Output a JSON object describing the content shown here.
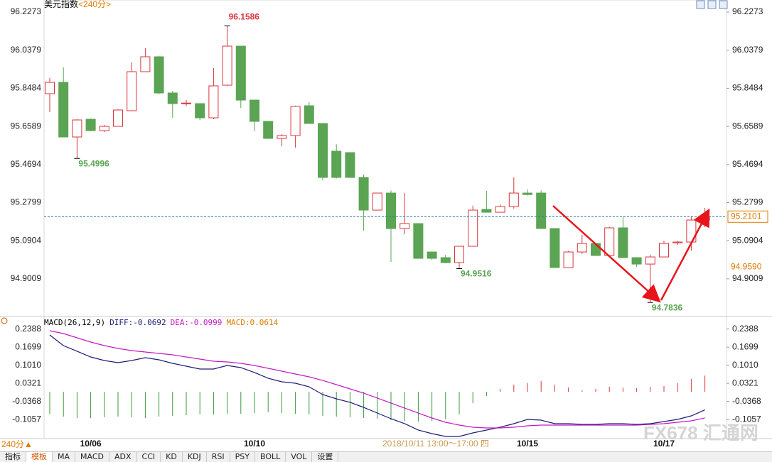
{
  "header": {
    "title": "美元指数",
    "period": "<240分>",
    "period_switch": "240分▲",
    "watermark": "FX678 汇通网"
  },
  "tabs": [
    "指标",
    "模板",
    "MA",
    "MACD",
    "ADX",
    "CCI",
    "KD",
    "KDJ",
    "RSI",
    "PSY",
    "BOLL",
    "VOL",
    "设置"
  ],
  "chart_data": [
    {
      "type": "candlestick",
      "categories": [
        null,
        null,
        null,
        "10/06",
        null,
        null,
        null,
        null,
        null,
        null,
        null,
        null,
        null,
        null,
        null,
        "10/10",
        null,
        null,
        null,
        null,
        null,
        null,
        null,
        null,
        null,
        null,
        null,
        null,
        null,
        null,
        null,
        null,
        null,
        null,
        null,
        "10/15",
        null,
        null,
        null,
        null,
        null,
        null,
        null,
        null,
        null,
        "10/17",
        null,
        null,
        null
      ],
      "open": [
        95.8215,
        95.8779,
        95.6062,
        95.6944,
        95.6379,
        95.6591,
        95.7368,
        95.9309,
        96.005,
        95.825,
        95.7721,
        95.7721,
        95.7015,
        95.8638,
        96.0579,
        95.7897,
        95.6838,
        95.5991,
        95.6133,
        95.7615,
        95.6733,
        95.5356,
        95.5286,
        95.4051,
        95.2427,
        95.3274,
        95.151,
        95.1757,
        95.0345,
        95.0063,
        94.9815,
        95.0628,
        95.2462,
        95.2321,
        95.2604,
        95.3274,
        95.3274,
        95.151,
        94.9569,
        95.0345,
        95.0769,
        95.0169,
        95.1545,
        95.0063,
        94.9744,
        95.0098,
        95.08,
        95.084,
        95.1933
      ],
      "high": [
        95.8991,
        95.952,
        95.6944,
        95.6979,
        95.6662,
        95.745,
        95.9767,
        96.0473,
        96.01,
        95.836,
        95.79,
        95.7721,
        95.9485,
        96.1586,
        96.0579,
        95.7897,
        95.6838,
        95.62,
        95.762,
        95.78,
        95.6733,
        95.57,
        95.5286,
        95.42,
        95.3274,
        95.34,
        95.3274,
        95.1757,
        95.0345,
        95.02,
        95.0628,
        95.265,
        95.338,
        95.27,
        95.4051,
        95.345,
        95.34,
        95.151,
        95.04,
        95.12,
        95.0769,
        95.16,
        95.211,
        95.0063,
        95.02,
        95.09,
        95.09,
        95.21,
        95.2533
      ],
      "low": [
        95.7297,
        95.6062,
        95.4996,
        95.6344,
        95.6309,
        95.6591,
        95.7368,
        95.9309,
        95.818,
        95.7015,
        95.76,
        95.69,
        95.6944,
        95.86,
        95.75,
        95.6344,
        95.5991,
        95.56,
        95.5533,
        95.6733,
        95.39,
        95.4,
        95.4051,
        95.14,
        95.2427,
        94.985,
        95.1228,
        95.0028,
        94.995,
        94.978,
        94.9516,
        95.0628,
        95.2321,
        95.2321,
        95.25,
        95.315,
        95.151,
        94.9569,
        94.9569,
        95.025,
        95.0169,
        95.0169,
        95.0063,
        94.96,
        94.7836,
        95.0098,
        95.07,
        95.04,
        95.158
      ],
      "close": [
        95.8779,
        95.6062,
        95.6909,
        95.6379,
        95.6591,
        95.7403,
        95.9309,
        96.005,
        95.825,
        95.7721,
        95.775,
        95.7015,
        95.8603,
        96.0579,
        95.7897,
        95.6838,
        95.5991,
        95.6133,
        95.758,
        95.6733,
        95.4051,
        95.4051,
        95.4051,
        95.2427,
        95.3274,
        95.151,
        95.1757,
        95.0028,
        95.0028,
        94.9815,
        95.0628,
        95.2427,
        95.2321,
        95.2604,
        95.3274,
        95.32,
        95.151,
        94.9569,
        95.0345,
        95.0769,
        95.0169,
        95.1545,
        95.0063,
        94.9744,
        95.0098,
        95.0769,
        95.084,
        95.1933,
        95.2101
      ],
      "up_color": "#d9363e",
      "down_color": "#5aa454",
      "high_label_color": "#d9363e",
      "low_label_color": "#5aa454",
      "ylim": [
        94.7171,
        96.2873
      ],
      "yticks": [
        96.2273,
        96.0379,
        95.8484,
        95.6589,
        95.4694,
        95.2799,
        95.0904,
        94.9009
      ],
      "marker": {
        "value": 94.959,
        "label": "94.9590"
      },
      "cursor_label": "2018/10/11 13:00～17:00 四"
    },
    {
      "type": "macd",
      "title": "MACD(26,12,9)",
      "series": [
        {
          "name": "DIFF:-0.0692",
          "color": "#1c1c78",
          "values": [
            0.2162,
            0.1757,
            0.1541,
            0.1324,
            0.1189,
            0.1108,
            0.1189,
            0.1297,
            0.1216,
            0.1081,
            0.0973,
            0.0865,
            0.0865,
            0.1,
            0.0919,
            0.073,
            0.0514,
            0.0378,
            0.0324,
            0.0189,
            -0.0108,
            -0.027,
            -0.0405,
            -0.0595,
            -0.0811,
            -0.1027,
            -0.1216,
            -0.1459,
            -0.1595,
            -0.1703,
            -0.1703,
            -0.1568,
            -0.1459,
            -0.1351,
            -0.1216,
            -0.1054,
            -0.1081,
            -0.1216,
            -0.1216,
            -0.1243,
            -0.1243,
            -0.1216,
            -0.1216,
            -0.1243,
            -0.1216,
            -0.1135,
            -0.1054,
            -0.0919,
            -0.0692
          ]
        },
        {
          "name": "DEA:-0.0999",
          "color": "#c21bc2",
          "values": [
            0.2324,
            0.2216,
            0.2054,
            0.1892,
            0.1757,
            0.1649,
            0.1568,
            0.1514,
            0.1459,
            0.1405,
            0.1324,
            0.1243,
            0.1162,
            0.1135,
            0.1081,
            0.1,
            0.0892,
            0.0784,
            0.0676,
            0.0568,
            0.0432,
            0.027,
            0.0108,
            -0.0054,
            -0.0243,
            -0.0432,
            -0.0622,
            -0.0811,
            -0.1,
            -0.1162,
            -0.127,
            -0.1351,
            -0.1378,
            -0.1378,
            -0.1351,
            -0.1297,
            -0.127,
            -0.127,
            -0.127,
            -0.127,
            -0.127,
            -0.127,
            -0.127,
            -0.127,
            -0.1243,
            -0.1216,
            -0.1162,
            -0.1108,
            -0.0999
          ]
        },
        {
          "name": "MACD:0.0614",
          "color": "#e07b00",
          "up_color": "#d9363e",
          "down_color": "#3a9a3a",
          "values": [
            -0.0838,
            -0.0946,
            -0.1,
            -0.1,
            -0.0973,
            -0.0946,
            -0.0973,
            -0.1,
            -0.0946,
            -0.0919,
            -0.0892,
            -0.0865,
            -0.0865,
            -0.0838,
            -0.0838,
            -0.0811,
            -0.0784,
            -0.0811,
            -0.0838,
            -0.0865,
            -0.0919,
            -0.0946,
            -0.0973,
            -0.1,
            -0.1027,
            -0.1081,
            -0.1108,
            -0.1135,
            -0.1108,
            -0.1054,
            -0.0865,
            -0.0432,
            -0.0162,
            0.0108,
            0.027,
            0.0324,
            0.0405,
            0.027,
            0.0162,
            0.0054,
            0.0108,
            0.0189,
            0.0162,
            0.0135,
            0.0189,
            0.0216,
            0.0324,
            0.0486,
            0.0614
          ]
        }
      ],
      "ylim": [
        -0.1784,
        0.2838
      ],
      "yticks": [
        0.2388,
        0.1699,
        {
          "value": 0.101,
          "label": "0.1010"
        },
        0.0321,
        -0.0368,
        -0.1057
      ]
    }
  ]
}
